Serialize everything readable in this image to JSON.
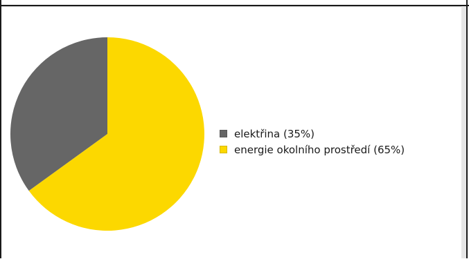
{
  "chart_data": {
    "type": "pie",
    "title": "",
    "slices": [
      {
        "label": "elektřina (35%)",
        "value": 35,
        "color": "#666666"
      },
      {
        "label": "energie okolního prostředí (65%)",
        "value": 65,
        "color": "#fcd800"
      }
    ],
    "legend_position": "right"
  }
}
